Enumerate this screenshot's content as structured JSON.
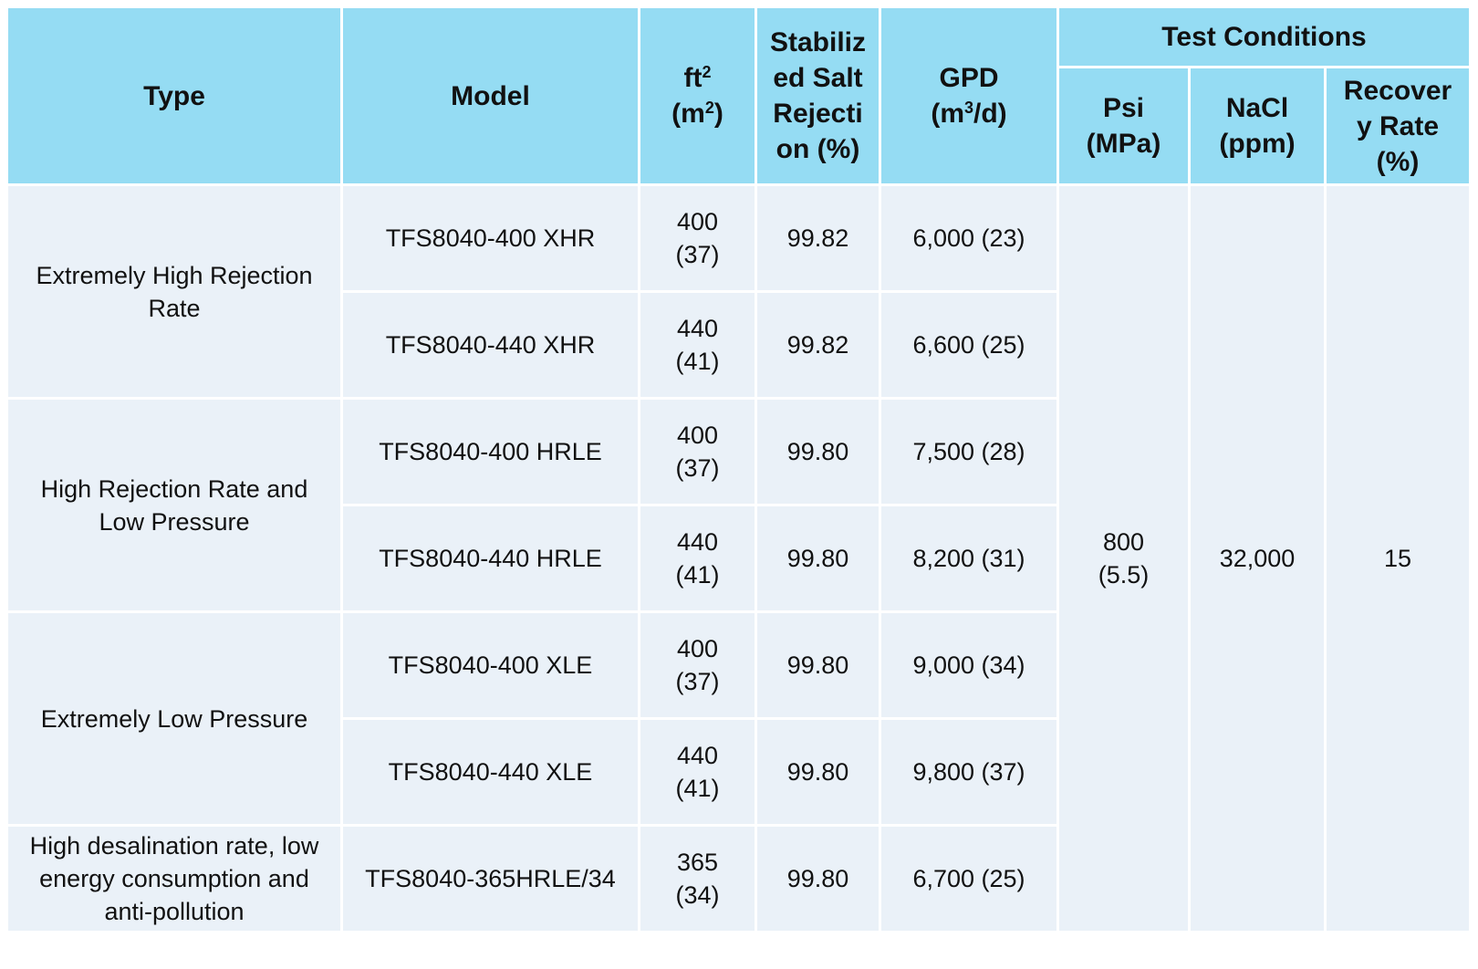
{
  "table": {
    "header": {
      "type": "Type",
      "model": "Model",
      "area": [
        [
          "ft",
          {
            "sup": "2"
          }
        ],
        [
          "(m",
          {
            "sup": "2"
          },
          ")"
        ]
      ],
      "rejection": "Stabilized Salt Rejection (%)",
      "gpd": [
        [
          "GPD"
        ],
        [
          "(m",
          {
            "sup": "3"
          },
          "/d)"
        ]
      ],
      "test_conditions": "Test Conditions",
      "psi": "Psi (MPa)",
      "nacl": "NaCl (ppm)",
      "recovery": "Recovery Rate (%)"
    },
    "groups": [
      {
        "type": "Extremely High Rejection Rate",
        "rows": [
          {
            "model": "TFS8040-400 XHR",
            "area": "400 (37)",
            "rejection": "99.82",
            "gpd": "6,000 (23)"
          },
          {
            "model": "TFS8040-440 XHR",
            "area": "440 (41)",
            "rejection": "99.82",
            "gpd": "6,600 (25)"
          }
        ]
      },
      {
        "type": "High Rejection Rate and Low Pressure",
        "rows": [
          {
            "model": "TFS8040-400 HRLE",
            "area": "400 (37)",
            "rejection": "99.80",
            "gpd": "7,500 (28)"
          },
          {
            "model": "TFS8040-440 HRLE",
            "area": "440 (41)",
            "rejection": "99.80",
            "gpd": "8,200 (31)"
          }
        ]
      },
      {
        "type": "Extremely Low Pressure",
        "rows": [
          {
            "model": "TFS8040-400 XLE",
            "area": "400 (37)",
            "rejection": "99.80",
            "gpd": "9,000 (34)"
          },
          {
            "model": "TFS8040-440 XLE",
            "area": "440 (41)",
            "rejection": "99.80",
            "gpd": "9,800 (37)"
          }
        ]
      },
      {
        "type": "High desalination rate, low energy consumption and anti-pollution",
        "rows": [
          {
            "model": "TFS8040-365HRLE/34",
            "area": "365 (34)",
            "rejection": "99.80",
            "gpd": "6,700 (25)"
          }
        ]
      }
    ],
    "conditions": {
      "psi": "800 (5.5)",
      "nacl": "32,000",
      "recovery": "15"
    }
  }
}
